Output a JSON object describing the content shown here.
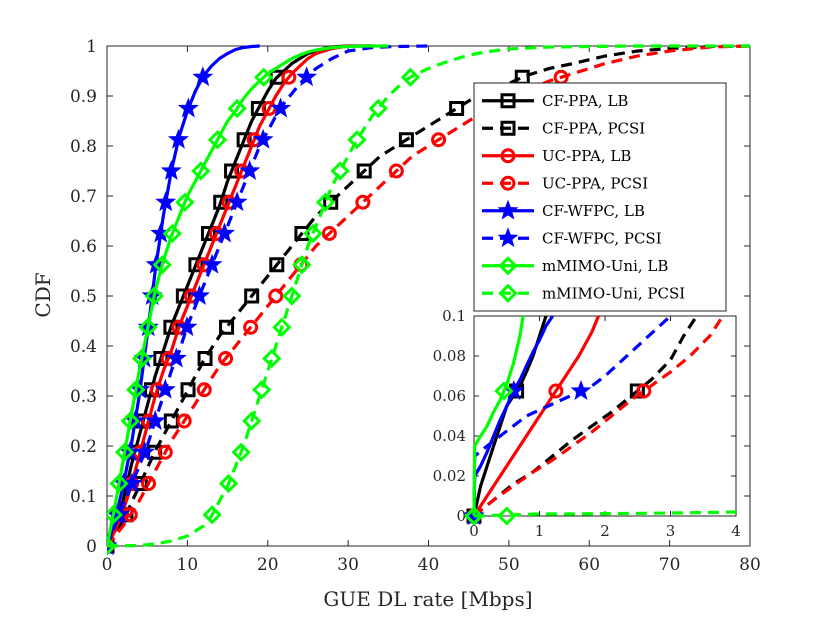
{
  "chart_data": {
    "type": "line",
    "title": "",
    "xlabel": "GUE DL rate [Mbps]",
    "ylabel": "CDF",
    "xlim": [
      0,
      80
    ],
    "ylim": [
      0,
      1
    ],
    "xticks": [
      "0",
      "10",
      "20",
      "30",
      "40",
      "50",
      "60",
      "70",
      "80"
    ],
    "yticks": [
      "0",
      "0.1",
      "0.2",
      "0.3",
      "0.4",
      "0.5",
      "0.6",
      "0.7",
      "0.8",
      "0.9",
      "1"
    ],
    "legend_position": "top-right",
    "series": [
      {
        "name": "CF-PPA, LB",
        "color": "#000000",
        "style": "solid",
        "marker": "square",
        "x": [
          0,
          1,
          2,
          3,
          4,
          5,
          6,
          7,
          8,
          9,
          10,
          11,
          12,
          13,
          14,
          15,
          16,
          17,
          18,
          19,
          20,
          21,
          22,
          23,
          24,
          25,
          26,
          27,
          28,
          30,
          33
        ],
        "y": [
          0,
          0.04,
          0.09,
          0.16,
          0.22,
          0.28,
          0.34,
          0.39,
          0.44,
          0.48,
          0.52,
          0.56,
          0.6,
          0.64,
          0.68,
          0.73,
          0.77,
          0.81,
          0.85,
          0.88,
          0.91,
          0.935,
          0.95,
          0.965,
          0.975,
          0.985,
          0.99,
          0.995,
          0.998,
          1,
          1
        ]
      },
      {
        "name": "CF-PPA, PCSI",
        "color": "#000000",
        "style": "dashed",
        "marker": "square",
        "x": [
          0,
          2,
          4,
          6,
          8,
          10,
          12,
          14,
          16,
          18,
          20,
          22,
          24,
          26,
          28,
          30,
          32,
          34,
          36,
          38,
          40,
          42,
          44,
          46,
          48,
          50,
          52,
          55,
          58,
          62,
          66,
          70,
          75,
          80
        ],
        "y": [
          0,
          0.05,
          0.12,
          0.19,
          0.25,
          0.31,
          0.37,
          0.42,
          0.46,
          0.5,
          0.54,
          0.58,
          0.62,
          0.66,
          0.69,
          0.72,
          0.75,
          0.78,
          0.8,
          0.82,
          0.84,
          0.86,
          0.88,
          0.9,
          0.91,
          0.925,
          0.94,
          0.955,
          0.965,
          0.98,
          0.99,
          0.995,
          0.999,
          1
        ]
      },
      {
        "name": "UC-PPA, LB",
        "color": "#ff0000",
        "style": "solid",
        "marker": "circle",
        "x": [
          0,
          1,
          2,
          3,
          4,
          5,
          6,
          7,
          8,
          9,
          10,
          11,
          12,
          13,
          14,
          15,
          16,
          17,
          18,
          19,
          20,
          21,
          22,
          23,
          24,
          25,
          26,
          27,
          28,
          30,
          33
        ],
        "y": [
          0,
          0.03,
          0.07,
          0.12,
          0.18,
          0.24,
          0.3,
          0.35,
          0.39,
          0.44,
          0.48,
          0.52,
          0.56,
          0.6,
          0.64,
          0.68,
          0.72,
          0.76,
          0.8,
          0.84,
          0.87,
          0.9,
          0.925,
          0.945,
          0.96,
          0.975,
          0.985,
          0.99,
          0.995,
          1,
          1
        ]
      },
      {
        "name": "UC-PPA, PCSI",
        "color": "#ff0000",
        "style": "dashed",
        "marker": "circle",
        "x": [
          0,
          2,
          4,
          6,
          8,
          10,
          12,
          14,
          16,
          18,
          20,
          22,
          24,
          26,
          28,
          30,
          32,
          34,
          36,
          38,
          40,
          42,
          44,
          46,
          48,
          50,
          52,
          55,
          58,
          62,
          66,
          70,
          75,
          80
        ],
        "y": [
          0,
          0.04,
          0.09,
          0.15,
          0.21,
          0.26,
          0.31,
          0.36,
          0.4,
          0.44,
          0.48,
          0.52,
          0.56,
          0.6,
          0.63,
          0.66,
          0.69,
          0.72,
          0.75,
          0.78,
          0.8,
          0.82,
          0.84,
          0.86,
          0.88,
          0.895,
          0.91,
          0.93,
          0.945,
          0.965,
          0.98,
          0.99,
          0.998,
          1
        ]
      },
      {
        "name": "CF-WFPC, LB",
        "color": "#0000ff",
        "style": "solid",
        "marker": "star",
        "x": [
          0,
          1,
          2,
          3,
          4,
          5,
          6,
          7,
          8,
          9,
          10,
          11,
          12,
          13,
          14,
          15,
          16,
          17,
          18,
          19
        ],
        "y": [
          0,
          0.05,
          0.12,
          0.2,
          0.3,
          0.42,
          0.55,
          0.66,
          0.75,
          0.82,
          0.87,
          0.91,
          0.94,
          0.96,
          0.975,
          0.985,
          0.993,
          0.997,
          0.999,
          1
        ]
      },
      {
        "name": "CF-WFPC, PCSI",
        "color": "#0000ff",
        "style": "dashed",
        "marker": "star",
        "x": [
          0,
          1,
          2,
          3,
          4,
          5,
          6,
          7,
          8,
          9,
          10,
          11,
          12,
          13,
          14,
          15,
          16,
          17,
          18,
          19,
          20,
          21,
          22,
          23,
          24,
          25,
          26,
          28,
          30,
          33,
          36,
          40
        ],
        "y": [
          0,
          0.04,
          0.08,
          0.12,
          0.16,
          0.2,
          0.25,
          0.3,
          0.35,
          0.39,
          0.44,
          0.48,
          0.52,
          0.56,
          0.6,
          0.64,
          0.68,
          0.72,
          0.76,
          0.8,
          0.83,
          0.86,
          0.885,
          0.905,
          0.925,
          0.94,
          0.955,
          0.975,
          0.99,
          0.997,
          0.999,
          1
        ]
      },
      {
        "name": "mMIMO-Uni, LB",
        "color": "#00ff00",
        "style": "solid",
        "marker": "diamond",
        "x": [
          0,
          1,
          2,
          3,
          4,
          5,
          6,
          7,
          8,
          9,
          10,
          11,
          12,
          13,
          14,
          15,
          16,
          17,
          18,
          19,
          20,
          21,
          22,
          23,
          24,
          25,
          26,
          28,
          30,
          32,
          35
        ],
        "y": [
          0,
          0.08,
          0.17,
          0.26,
          0.35,
          0.43,
          0.51,
          0.57,
          0.62,
          0.66,
          0.7,
          0.73,
          0.76,
          0.79,
          0.82,
          0.85,
          0.87,
          0.895,
          0.915,
          0.93,
          0.945,
          0.955,
          0.965,
          0.975,
          0.982,
          0.988,
          0.992,
          0.997,
          0.999,
          1,
          1
        ]
      },
      {
        "name": "mMIMO-Uni, PCSI",
        "color": "#00ff00",
        "style": "dashed",
        "marker": "diamond",
        "x": [
          0,
          4,
          6,
          8,
          10,
          12,
          13,
          14,
          15,
          16,
          17,
          18,
          19,
          20,
          21,
          22,
          23,
          24,
          25,
          26,
          27,
          28,
          29,
          30,
          31,
          32,
          33,
          34,
          35,
          36,
          37,
          38,
          40,
          42,
          44,
          46,
          48,
          50,
          55,
          60,
          65,
          70,
          75,
          80
        ],
        "y": [
          0,
          0.001,
          0.004,
          0.01,
          0.02,
          0.04,
          0.06,
          0.09,
          0.12,
          0.16,
          0.2,
          0.25,
          0.3,
          0.35,
          0.4,
          0.45,
          0.5,
          0.55,
          0.6,
          0.64,
          0.68,
          0.72,
          0.75,
          0.78,
          0.81,
          0.835,
          0.86,
          0.88,
          0.9,
          0.915,
          0.93,
          0.94,
          0.955,
          0.967,
          0.977,
          0.985,
          0.99,
          0.994,
          0.998,
          0.999,
          1,
          1,
          1,
          1
        ]
      }
    ],
    "inset": {
      "xlim": [
        0,
        4
      ],
      "ylim": [
        0,
        0.1
      ],
      "xticks": [
        "0",
        "1",
        "2",
        "3",
        "4"
      ],
      "yticks": [
        "0",
        "0.02",
        "0.04",
        "0.06",
        "0.08",
        "0.1"
      ],
      "series": [
        {
          "name": "CF-PPA, LB",
          "x": [
            0,
            0.1,
            0.2,
            0.3,
            0.4,
            0.5,
            0.6,
            0.7,
            0.8,
            0.9,
            1.0,
            1.1
          ],
          "y": [
            0,
            0.015,
            0.025,
            0.035,
            0.045,
            0.055,
            0.06,
            0.065,
            0.072,
            0.08,
            0.09,
            0.1
          ]
        },
        {
          "name": "CF-PPA, PCSI",
          "x": [
            0,
            0.3,
            0.6,
            0.9,
            1.2,
            1.5,
            1.8,
            2.1,
            2.4,
            2.7,
            3.0,
            3.2,
            3.4
          ],
          "y": [
            0,
            0.008,
            0.016,
            0.022,
            0.03,
            0.038,
            0.045,
            0.052,
            0.06,
            0.068,
            0.078,
            0.09,
            0.1
          ]
        },
        {
          "name": "UC-PPA, LB",
          "x": [
            0,
            0.2,
            0.4,
            0.6,
            0.8,
            1.0,
            1.2,
            1.4,
            1.6,
            1.8,
            1.9
          ],
          "y": [
            0,
            0.01,
            0.02,
            0.03,
            0.04,
            0.05,
            0.06,
            0.07,
            0.08,
            0.092,
            0.1
          ]
        },
        {
          "name": "UC-PPA, PCSI",
          "x": [
            0,
            0.3,
            0.6,
            0.9,
            1.2,
            1.5,
            1.8,
            2.1,
            2.4,
            2.7,
            3.0,
            3.3,
            3.6,
            3.8
          ],
          "y": [
            0,
            0.008,
            0.015,
            0.022,
            0.028,
            0.035,
            0.042,
            0.05,
            0.058,
            0.065,
            0.072,
            0.08,
            0.09,
            0.1
          ]
        },
        {
          "name": "CF-WFPC, LB",
          "x": [
            0,
            0.01,
            0.1,
            0.2,
            0.3,
            0.4,
            0.5,
            0.6,
            0.7,
            0.8,
            0.9,
            1.0,
            1.1,
            1.2
          ],
          "y": [
            0,
            0.02,
            0.025,
            0.032,
            0.04,
            0.048,
            0.055,
            0.062,
            0.068,
            0.075,
            0.082,
            0.088,
            0.095,
            0.1
          ]
        },
        {
          "name": "CF-WFPC, PCSI",
          "x": [
            0,
            0.01,
            0.2,
            0.4,
            0.6,
            0.8,
            1.0,
            1.2,
            1.4,
            1.6,
            1.8,
            2.0,
            2.2,
            2.4,
            2.6,
            2.8,
            3.0
          ],
          "y": [
            0,
            0.03,
            0.035,
            0.04,
            0.045,
            0.05,
            0.053,
            0.056,
            0.059,
            0.062,
            0.065,
            0.07,
            0.076,
            0.082,
            0.088,
            0.094,
            0.1
          ]
        },
        {
          "name": "mMIMO-Uni, LB",
          "x": [
            0,
            0.01,
            0.1,
            0.2,
            0.3,
            0.4,
            0.5,
            0.6,
            0.7,
            0.75
          ],
          "y": [
            0,
            0.035,
            0.04,
            0.045,
            0.052,
            0.058,
            0.066,
            0.076,
            0.09,
            0.1
          ]
        },
        {
          "name": "mMIMO-Uni, PCSI",
          "x": [
            0,
            0.5,
            1.0,
            1.5,
            2.0,
            2.5,
            3.0,
            3.5,
            4.0
          ],
          "y": [
            0,
            0.0005,
            0.001,
            0.001,
            0.0012,
            0.0013,
            0.0015,
            0.0017,
            0.002
          ]
        }
      ]
    }
  }
}
